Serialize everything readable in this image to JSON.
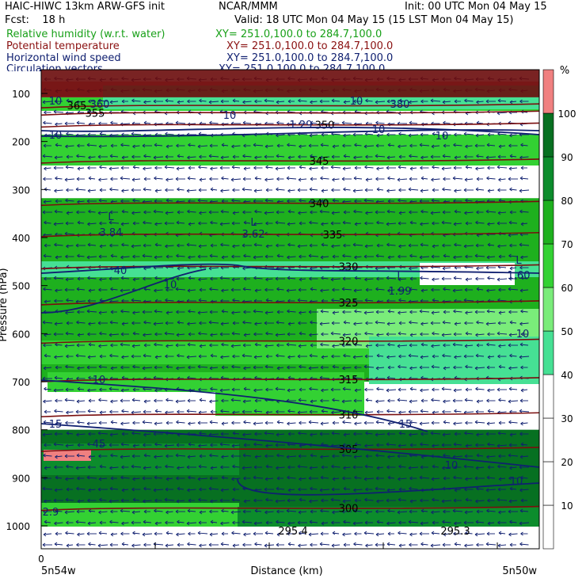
{
  "header": {
    "model_line": "HAIC-HIWC 13km ARW-GFS init",
    "org": "NCAR/MMM",
    "init": "Init: 00 UTC Mon 04 May 15",
    "fcst": "Fcst:    18 h",
    "valid": "Valid: 18 UTC Mon 04 May 15 (15 LST Mon 04 May 15)"
  },
  "fields": [
    {
      "name": "Relative humidity (w.r.t. water)",
      "xy": "XY= 251.0,100.0 to 284.7,100.0",
      "color": "#18a018"
    },
    {
      "name": "Potential temperature",
      "xy": "XY= 251.0,100.0 to 284.7,100.0",
      "color": "#8a1010"
    },
    {
      "name": "Horizontal wind speed",
      "xy": "XY= 251.0,100.0 to 284.7,100.0",
      "color": "#102070"
    },
    {
      "name": "Circulation vectors",
      "xy": "XY= 251.0,100.0 to 284.7,100.0",
      "color": "#102070"
    }
  ],
  "chart_data": {
    "type": "heatmap",
    "xlabel": "Distance (km)",
    "ylabel": "Pressure (hPa)",
    "x_tick_zero": "0",
    "x_start_label": "5n54w",
    "x_end_label": "5n50w",
    "y_ticks": [
      "100",
      "200",
      "300",
      "400",
      "500",
      "600",
      "700",
      "800",
      "900",
      "1000"
    ],
    "y_range_hpa": [
      1050,
      75
    ],
    "colorbar": {
      "unit": "%",
      "ticks": [
        "10",
        "20",
        "30",
        "40",
        "50",
        "60",
        "70",
        "80",
        "90",
        "100"
      ],
      "colors": [
        "#ffffff",
        "#ffffff",
        "#ffffff",
        "#ffffff",
        "#46e094",
        "#7aec7a",
        "#33d133",
        "#1eb01e",
        "#0c8c2c",
        "#077021",
        "#f08080"
      ]
    },
    "rh_bands": [
      {
        "p_top": 75,
        "p_bot": 108,
        "rh": 100
      },
      {
        "p_top": 108,
        "p_bot": 250,
        "rh": 60
      },
      {
        "p_top": 250,
        "p_bot": 318,
        "rh": 20
      },
      {
        "p_top": 318,
        "p_bot": 700,
        "rh": 75
      },
      {
        "p_top": 700,
        "p_bot": 800,
        "rh": 30
      },
      {
        "p_top": 800,
        "p_bot": 1000,
        "rh": 90
      }
    ],
    "theta_contours": [
      {
        "label": "365",
        "p": 125
      },
      {
        "label": "355",
        "p": 140
      },
      {
        "label": "350",
        "p": 165
      },
      {
        "label": "345",
        "p": 240
      },
      {
        "label": "340",
        "p": 328
      },
      {
        "label": "335",
        "p": 393
      },
      {
        "label": "330",
        "p": 460
      },
      {
        "label": "325",
        "p": 535
      },
      {
        "label": "320",
        "p": 615
      },
      {
        "label": "315",
        "p": 695
      },
      {
        "label": "310",
        "p": 768
      },
      {
        "label": "305",
        "p": 840
      },
      {
        "label": "300",
        "p": 963
      },
      {
        "label": "295.4",
        "p": 1010
      },
      {
        "label": "295.3",
        "p": 1010
      }
    ],
    "wind_labels": [
      "10",
      "360",
      "10",
      "380",
      "10",
      "10",
      "1.29",
      "10",
      "40",
      "10",
      "10",
      "10",
      "15",
      "15",
      "45",
      "10",
      "10",
      "10",
      "2.9"
    ],
    "minima": [
      {
        "label": "L",
        "value": "3.84"
      },
      {
        "label": "L",
        "value": "3.62"
      },
      {
        "label": "L",
        "value": "1.99"
      },
      {
        "label": "L",
        "value": "1.60"
      }
    ]
  }
}
